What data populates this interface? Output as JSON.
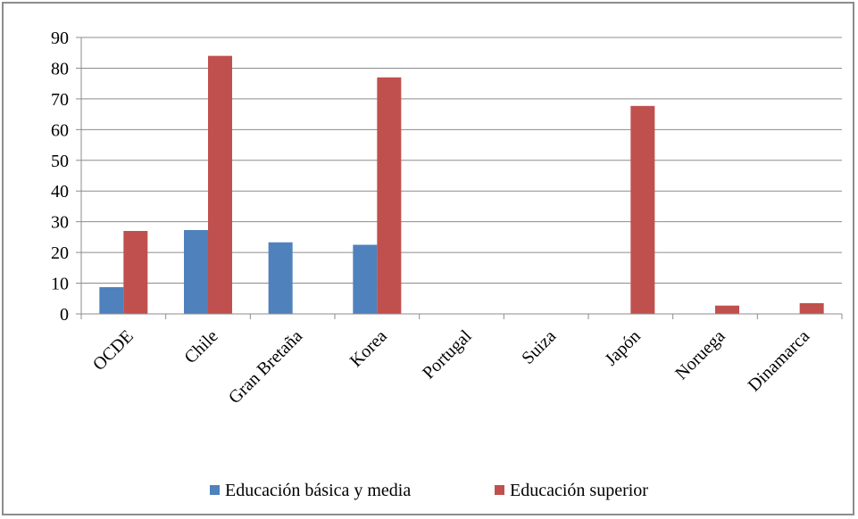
{
  "chart_data": {
    "type": "bar",
    "title": "",
    "xlabel": "",
    "ylabel": "",
    "ylim": [
      0,
      90
    ],
    "yticks": [
      0,
      10,
      20,
      30,
      40,
      50,
      60,
      70,
      80,
      90
    ],
    "categories": [
      "OCDE",
      "Chile",
      "Gran Bretaña",
      "Korea",
      "Portugal",
      "Suiza",
      "Japón",
      "Noruega",
      "Dinamarca"
    ],
    "series": [
      {
        "name": "Educación básica y media",
        "color": "#4f81bd",
        "values": [
          8.7,
          27.3,
          23.3,
          22.5,
          0,
          0,
          0,
          0,
          0
        ]
      },
      {
        "name": "Educación superior",
        "color": "#c0504d",
        "values": [
          27.0,
          84.0,
          0,
          77.0,
          0,
          0,
          67.7,
          2.7,
          3.5
        ]
      }
    ],
    "grid": true,
    "legend_position": "bottom"
  }
}
